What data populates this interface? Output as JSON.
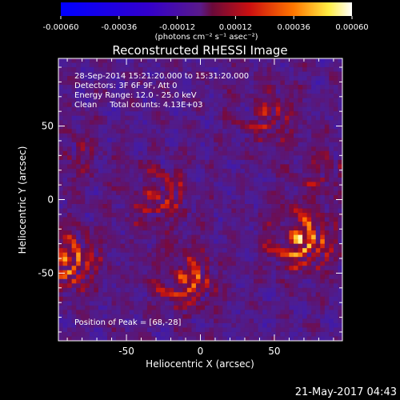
{
  "colorbar": {
    "ticks": [
      "-0.00060",
      "-0.00036",
      "-0.00012",
      "0.00012",
      "0.00036",
      "0.00060"
    ],
    "tick_values": [
      -0.0006,
      -0.00036,
      -0.00012,
      0.00012,
      0.00036,
      0.0006
    ],
    "range": [
      -0.0006,
      0.0006
    ],
    "units": "(photons cm⁻² s⁻¹ asec⁻²)",
    "colormap": "RHESSI blue-purple-red-yellow-white"
  },
  "chart_data": {
    "type": "heatmap",
    "title": "Reconstructed RHESSI Image",
    "xlabel": "Heliocentric X (arcsec)",
    "ylabel": "Heliocentric Y (arcsec)",
    "xlim": [
      -96,
      96
    ],
    "ylim": [
      -96,
      96
    ],
    "xticks": [
      -50,
      0,
      50
    ],
    "yticks": [
      -50,
      0,
      50
    ],
    "info_lines": [
      "28-Sep-2014 15:21:20.000 to 15:31:20.000",
      "Detectors: 3F 6F 9F, Att 0",
      "Energy Range: 12.0 - 25.0 keV",
      "Clean     Total counts: 4.13E+03"
    ],
    "peak_text": "Position of Peak = [68,-28]",
    "peak": [
      68,
      -28
    ],
    "sources": [
      {
        "x": 68,
        "y": -28,
        "relative_intensity": 1.0
      },
      {
        "x": -90,
        "y": -42,
        "relative_intensity": 0.85
      },
      {
        "x": -10,
        "y": -55,
        "relative_intensity": 0.75
      },
      {
        "x": -28,
        "y": 2,
        "relative_intensity": 0.6
      },
      {
        "x": 45,
        "y": 58,
        "relative_intensity": 0.5
      },
      {
        "x": 80,
        "y": 20,
        "relative_intensity": 0.35
      },
      {
        "x": -88,
        "y": 30,
        "relative_intensity": 0.3
      }
    ]
  },
  "timestamp": "21-May-2017 04:43"
}
